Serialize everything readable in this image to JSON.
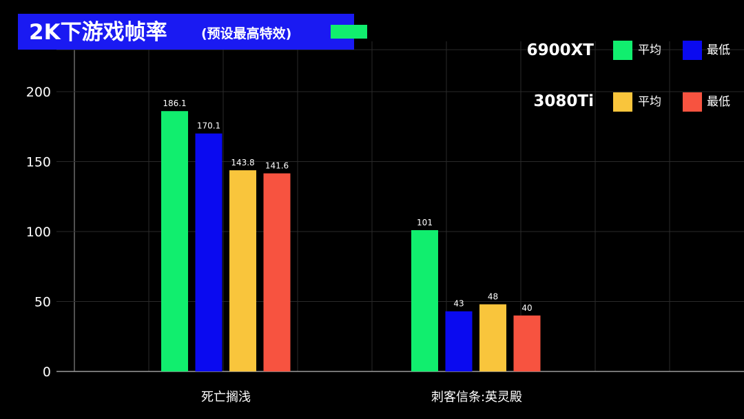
{
  "title": {
    "main": "2K下游戏帧率",
    "sub": "(预设最高特效)",
    "swatch_color": "#11ee6e"
  },
  "legend": [
    {
      "gpu": "6900XT",
      "entries": [
        {
          "label": "平均",
          "color": "#11ee6e"
        },
        {
          "label": "最低",
          "color": "#0a0af0"
        }
      ]
    },
    {
      "gpu": "3080Ti",
      "entries": [
        {
          "label": "平均",
          "color": "#f9c53c"
        },
        {
          "label": "最低",
          "color": "#f75340"
        }
      ]
    }
  ],
  "chart_data": {
    "type": "bar",
    "title": "2K下游戏帧率",
    "subtitle": "(预设最高特效)",
    "categories": [
      "死亡搁浅",
      "刺客信条:英灵殿"
    ],
    "series": [
      {
        "name": "6900XT 平均",
        "color": "#11ee6e",
        "values": [
          186.1,
          101
        ]
      },
      {
        "name": "6900XT 最低",
        "color": "#0a0af0",
        "values": [
          170.1,
          43
        ]
      },
      {
        "name": "3080Ti 平均",
        "color": "#f9c53c",
        "values": [
          143.8,
          48
        ]
      },
      {
        "name": "3080Ti 最低",
        "color": "#f75340",
        "values": [
          141.6,
          40
        ]
      }
    ],
    "data_labels": [
      [
        "186.1",
        "101"
      ],
      [
        "170.1",
        "43"
      ],
      [
        "143.8",
        "48"
      ],
      [
        "141.6",
        "40"
      ]
    ],
    "yticks": [
      0,
      50,
      100,
      150,
      200
    ],
    "ylim": [
      0,
      230
    ],
    "xlabel": "",
    "ylabel": "",
    "grid": true,
    "legend_position": "top-right"
  }
}
